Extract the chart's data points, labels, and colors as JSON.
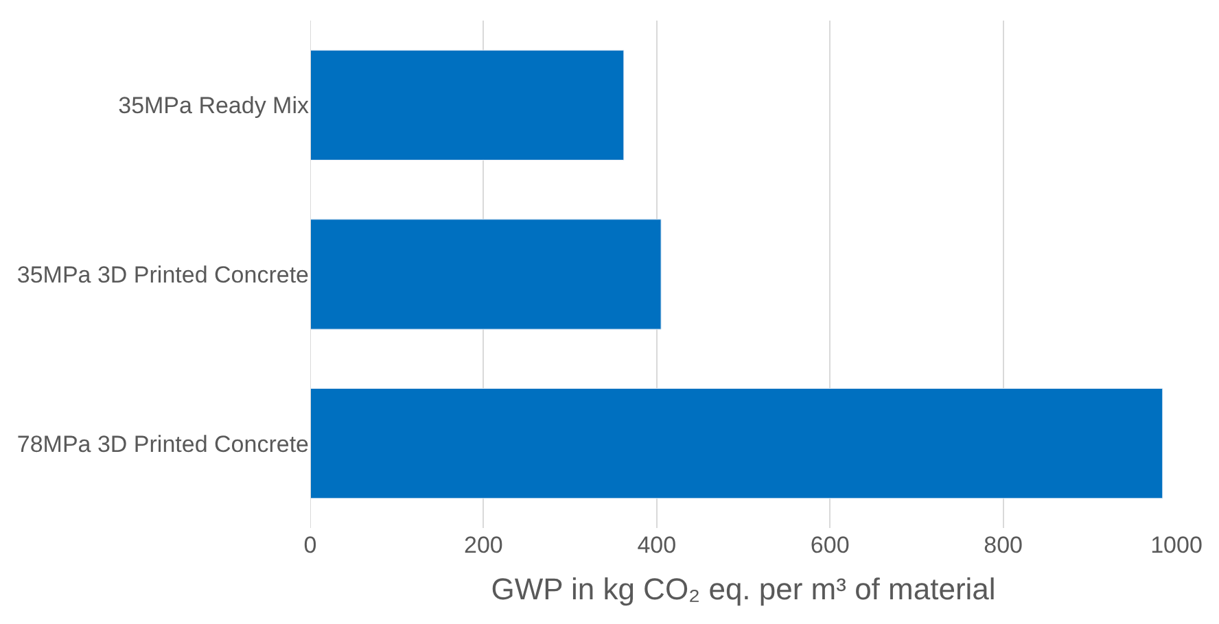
{
  "chart_data": {
    "type": "bar",
    "orientation": "horizontal",
    "categories": [
      "35MPa Ready Mix",
      "35MPa 3D Printed Concrete",
      "78MPa 3D Printed Concrete"
    ],
    "values": [
      362,
      405,
      984
    ],
    "color": "#0070c0",
    "xlabel": "GWP in kg CO₂ eq. per m³ of material",
    "xlim": [
      0,
      1000
    ],
    "xticks": [
      0,
      200,
      400,
      600,
      800,
      1000
    ],
    "grid": "x"
  }
}
